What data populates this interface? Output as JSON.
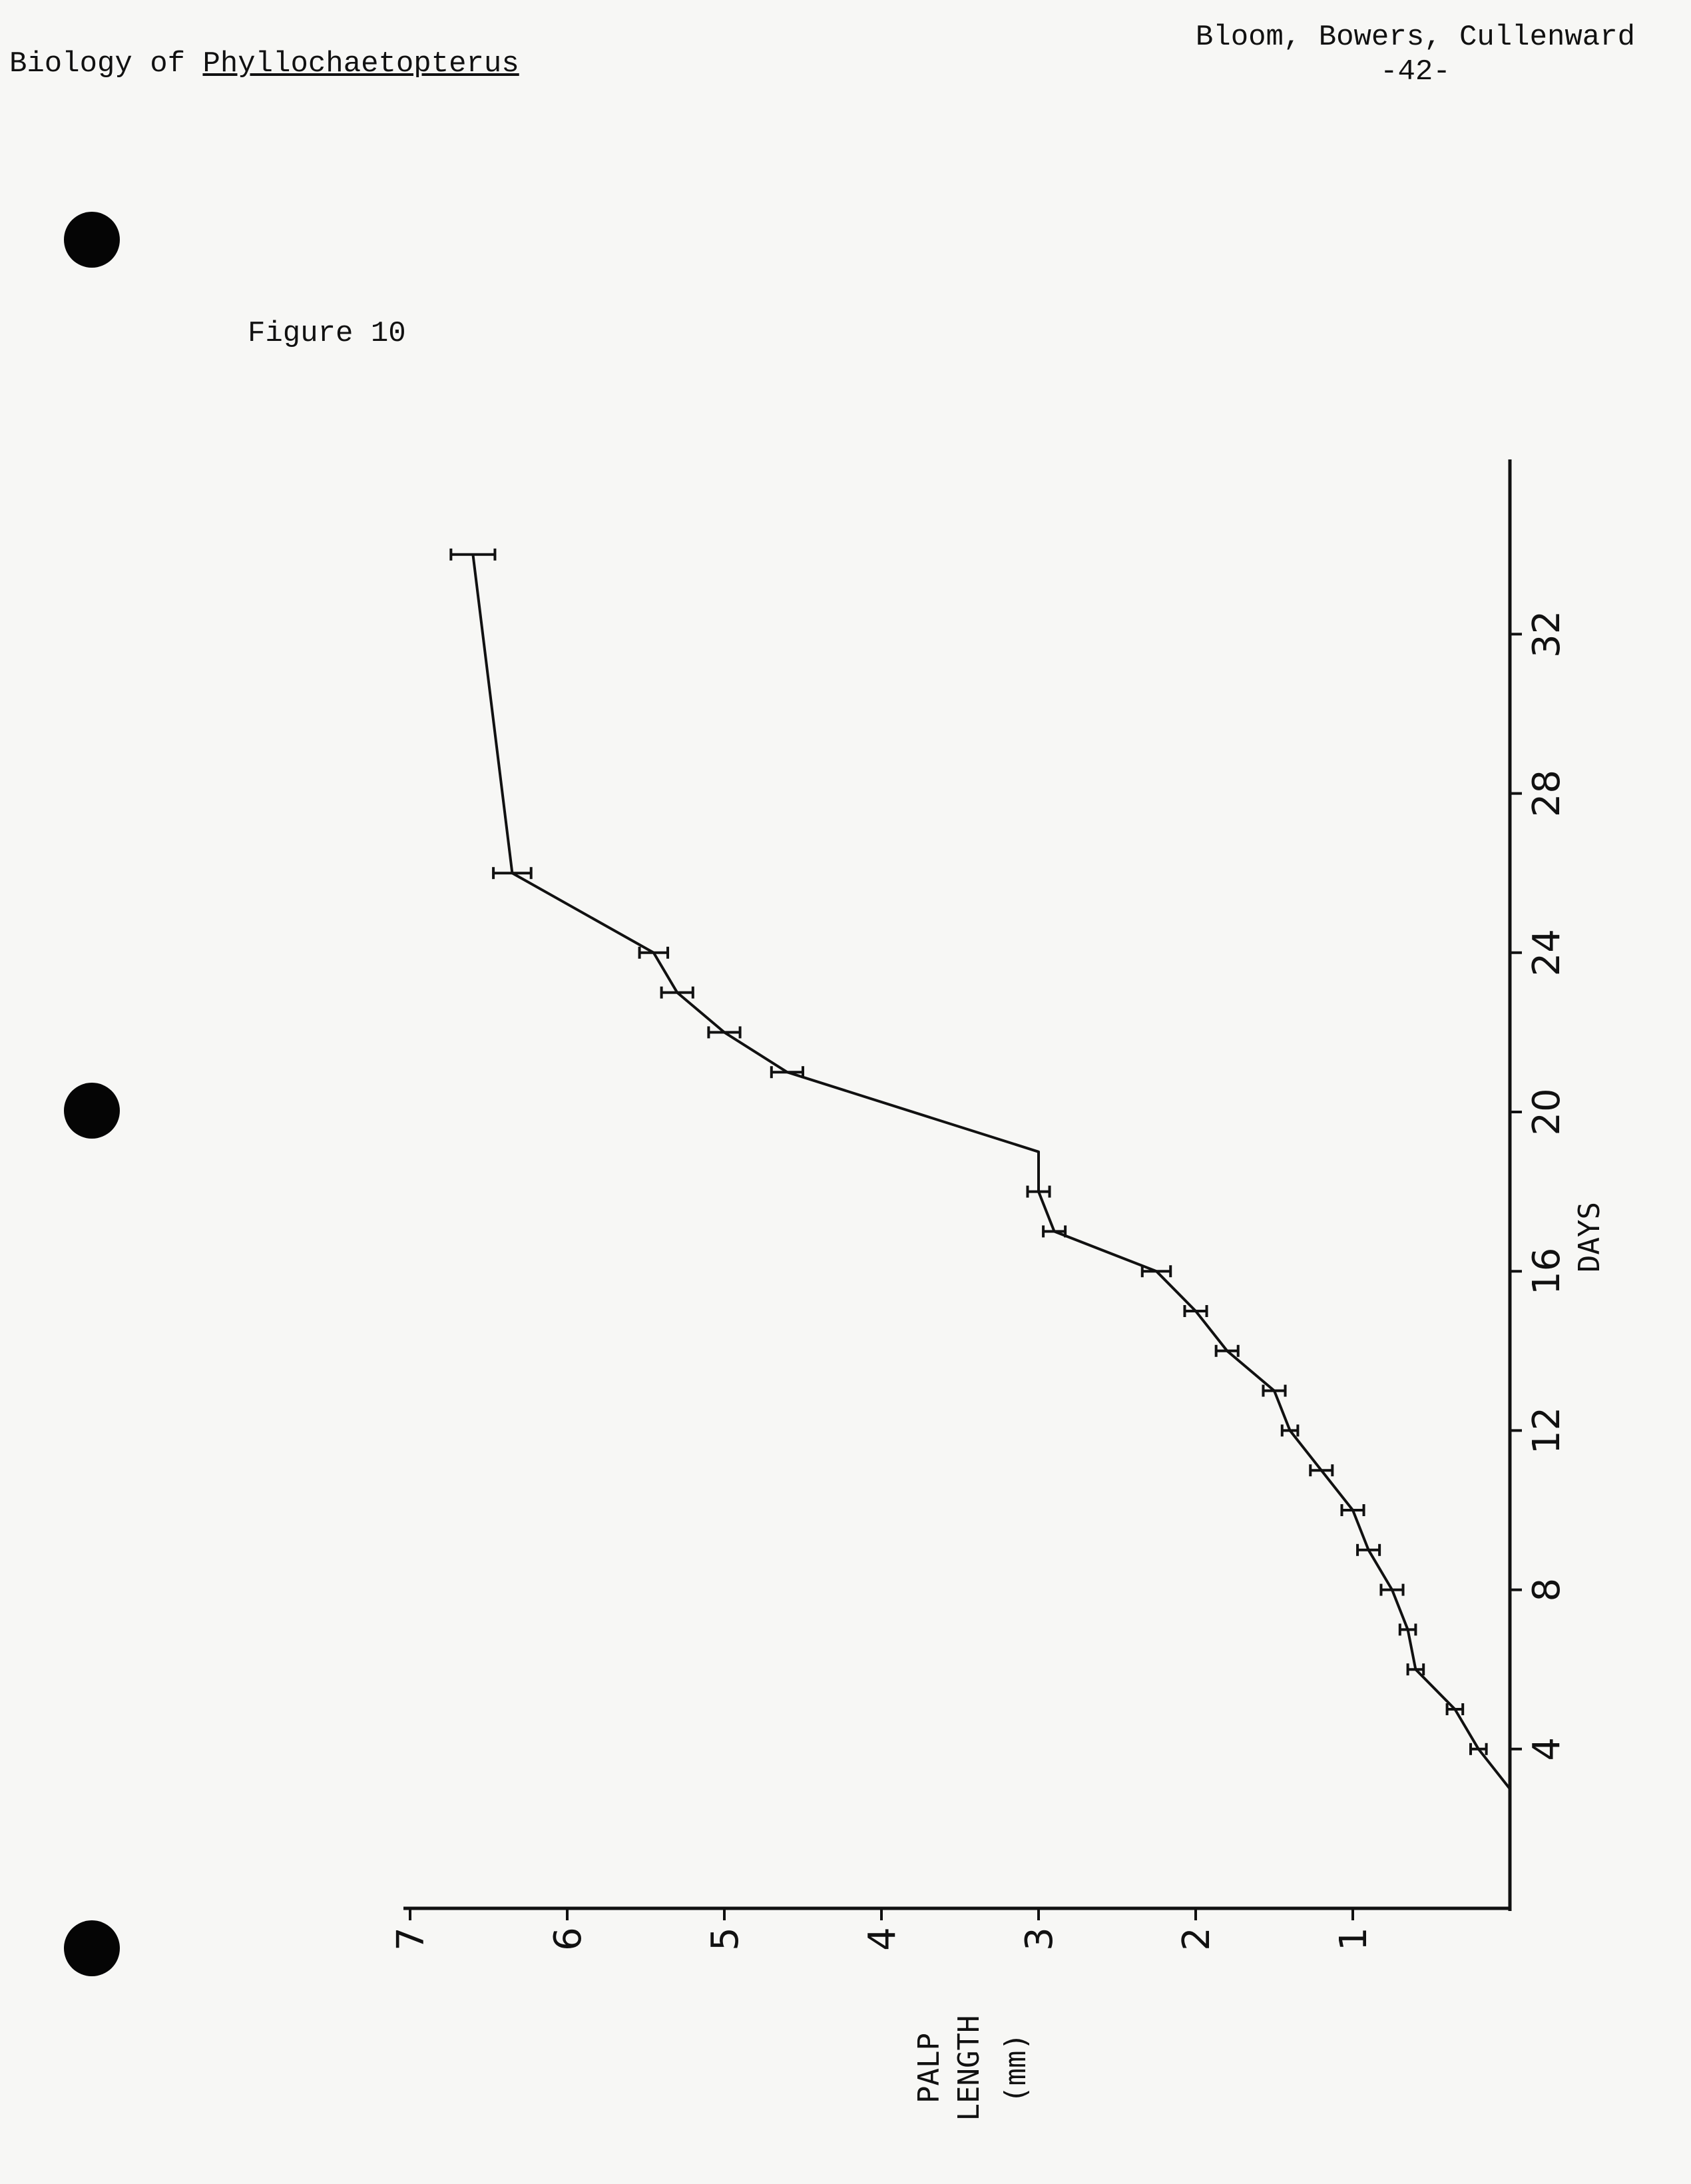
{
  "header": {
    "left_prefix": "Biology of ",
    "left_genus": "Phyllochaetopterus",
    "right_authors": "Bloom, Bowers, Cullenward",
    "right_page": "-42-"
  },
  "figure_label": "Figure 10",
  "chart_data": {
    "type": "line",
    "orientation": "rotated 90° counter-clockwise (days run upward, palp length runs leftward)",
    "xlabel": "DAYS",
    "ylabel_lines": [
      "PALP",
      "LENGTH",
      "(mm)"
    ],
    "x_ticks": [
      4,
      8,
      12,
      16,
      20,
      24,
      28,
      32
    ],
    "y_ticks": [
      1,
      2,
      3,
      4,
      5,
      6,
      7
    ],
    "xlim": [
      0,
      36
    ],
    "ylim": [
      0,
      7
    ],
    "error_bars": true,
    "series": [
      {
        "x": [
          3,
          4,
          5,
          6,
          7,
          8,
          9,
          10,
          11,
          12,
          13,
          14,
          15,
          16,
          17,
          18,
          19,
          21,
          22,
          23,
          24,
          26,
          34
        ],
        "y": [
          0.0,
          0.2,
          0.35,
          0.6,
          0.65,
          0.75,
          0.9,
          1.0,
          1.2,
          1.4,
          1.5,
          1.8,
          2.0,
          2.25,
          2.9,
          3.0,
          3.0,
          4.6,
          5.0,
          5.3,
          5.45,
          6.35,
          6.6
        ],
        "err": [
          0,
          0.05,
          0.05,
          0.05,
          0.05,
          0.07,
          0.07,
          0.07,
          0.07,
          0.05,
          0.07,
          0.07,
          0.07,
          0.09,
          0.07,
          0.07,
          0,
          0.1,
          0.1,
          0.1,
          0.09,
          0.12,
          0.14
        ]
      }
    ]
  }
}
